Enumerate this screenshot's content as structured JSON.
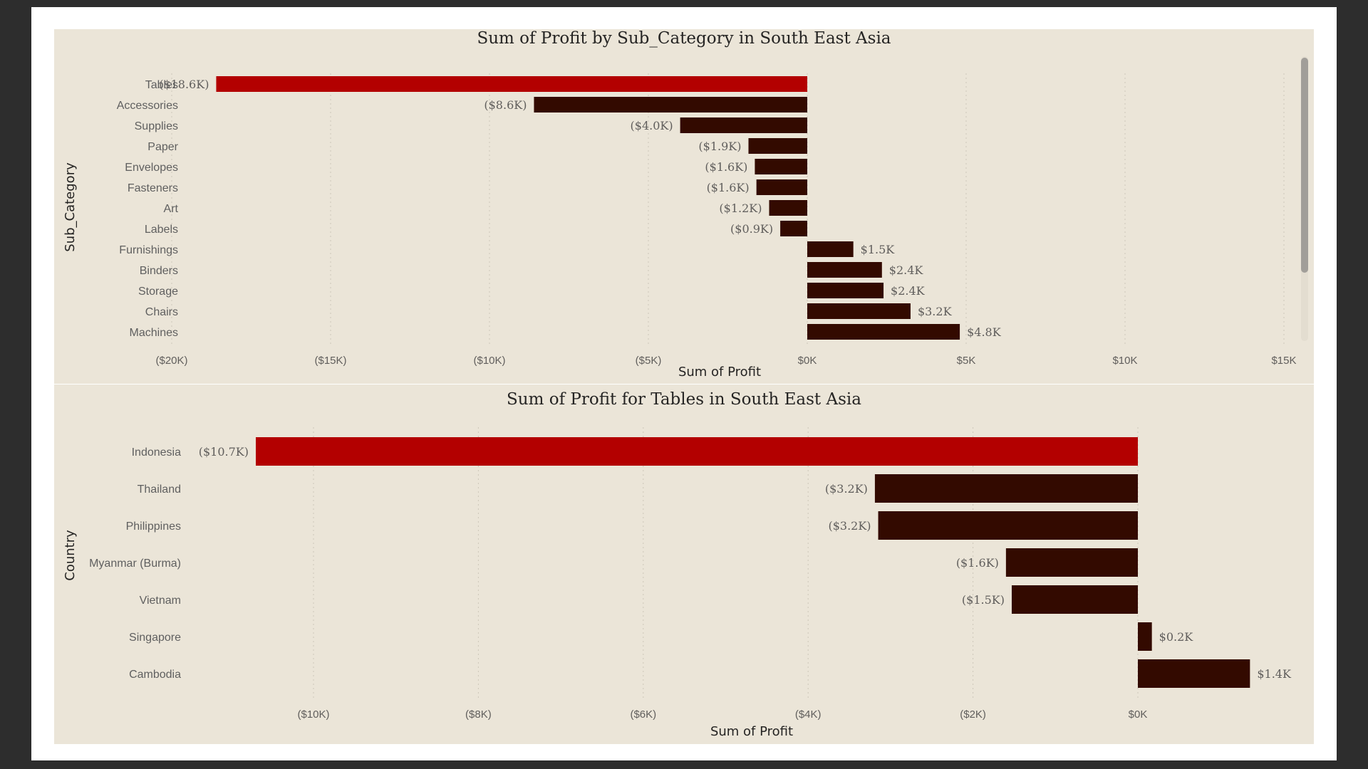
{
  "chart_data": [
    {
      "type": "bar",
      "orientation": "horizontal",
      "title": "Sum of Profit by Sub_Category in South East Asia",
      "xlabel": "Sum of Profit",
      "ylabel": "Sub_Category",
      "categories": [
        "Tables",
        "Accessories",
        "Supplies",
        "Paper",
        "Envelopes",
        "Fasteners",
        "Art",
        "Labels",
        "Furnishings",
        "Binders",
        "Storage",
        "Chairs",
        "Machines"
      ],
      "values": [
        -18600,
        -8600,
        -4000,
        -1850,
        -1650,
        -1600,
        -1200,
        -850,
        1450,
        2350,
        2400,
        3250,
        4800
      ],
      "data_labels": [
        "($18.6K)",
        "($8.6K)",
        "($4.0K)",
        "($1.9K)",
        "($1.6K)",
        "($1.6K)",
        "($1.2K)",
        "($0.9K)",
        "$1.5K",
        "$2.4K",
        "$2.4K",
        "$3.2K",
        "$4.8K"
      ],
      "x_ticks": [
        -20000,
        -15000,
        -10000,
        -5000,
        0,
        5000,
        10000,
        15000
      ],
      "x_tick_labels": [
        "($20K)",
        "($15K)",
        "($10K)",
        "($5K)",
        "$0K",
        "$5K",
        "$10K",
        "$15K"
      ],
      "xlim": [
        -20000,
        15000
      ],
      "highlight_index": 0,
      "colors": {
        "highlight": "#b30000",
        "bar": "#330a00"
      },
      "grid": true
    },
    {
      "type": "bar",
      "orientation": "horizontal",
      "title": "Sum of Profit for Tables in South East Asia",
      "xlabel": "Sum of Profit",
      "ylabel": "Country",
      "categories": [
        "Indonesia",
        "Thailand",
        "Philippines",
        "Myanmar (Burma)",
        "Vietnam",
        "Singapore",
        "Cambodia"
      ],
      "values": [
        -10700,
        -3190,
        -3150,
        -1600,
        -1530,
        170,
        1360
      ],
      "data_labels": [
        "($10.7K)",
        "($3.2K)",
        "($3.2K)",
        "($1.6K)",
        "($1.5K)",
        "$0.2K",
        "$1.4K"
      ],
      "x_ticks": [
        -10000,
        -8000,
        -6000,
        -4000,
        -2000,
        0
      ],
      "x_tick_labels": [
        "($10K)",
        "($8K)",
        "($6K)",
        "($4K)",
        "($2K)",
        "$0K"
      ],
      "xlim": [
        -10000,
        0
      ],
      "highlight_index": 0,
      "colors": {
        "highlight": "#b30000",
        "bar": "#330a00"
      },
      "grid": true
    }
  ]
}
